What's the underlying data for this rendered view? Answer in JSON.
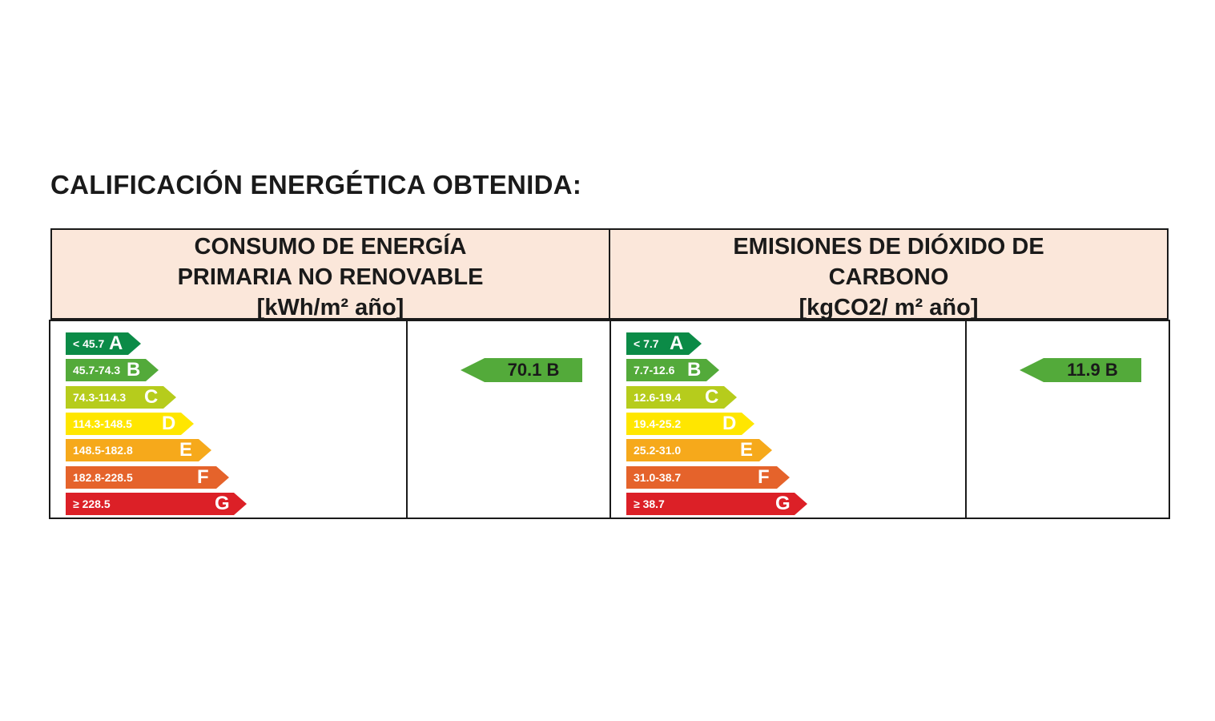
{
  "title": "CALIFICACIÓN ENERGÉTICA OBTENIDA:",
  "colors": {
    "A": "#0b8b47",
    "B": "#53aa3a",
    "C": "#b6cc1c",
    "D": "#ffe600",
    "E": "#f6a91b",
    "F": "#e5632b",
    "G": "#dc2027",
    "header_bg": "#fbe7da"
  },
  "energy": {
    "header": [
      "CONSUMO DE ENERGÍA",
      "PRIMARIA NO RENOVABLE",
      "[kWh/m² año]"
    ],
    "bands": [
      {
        "letter": "A",
        "range": "< 45.7"
      },
      {
        "letter": "B",
        "range": "45.7-74.3"
      },
      {
        "letter": "C",
        "range": "74.3-114.3"
      },
      {
        "letter": "D",
        "range": "114.3-148.5"
      },
      {
        "letter": "E",
        "range": "148.5-182.8"
      },
      {
        "letter": "F",
        "range": "182.8-228.5"
      },
      {
        "letter": "G",
        "range": "≥ 228.5"
      }
    ],
    "result": {
      "label": "70.1 B",
      "letter": "B"
    }
  },
  "emissions": {
    "header": [
      "EMISIONES DE DIÓXIDO DE",
      "CARBONO",
      "[kgCO2/ m² año]"
    ],
    "bands": [
      {
        "letter": "A",
        "range": "< 7.7"
      },
      {
        "letter": "B",
        "range": "7.7-12.6"
      },
      {
        "letter": "C",
        "range": "12.6-19.4"
      },
      {
        "letter": "D",
        "range": "19.4-25.2"
      },
      {
        "letter": "E",
        "range": "25.2-31.0"
      },
      {
        "letter": "F",
        "range": "31.0-38.7"
      },
      {
        "letter": "G",
        "range": "≥ 38.7"
      }
    ],
    "result": {
      "label": "11.9 B",
      "letter": "B"
    }
  }
}
